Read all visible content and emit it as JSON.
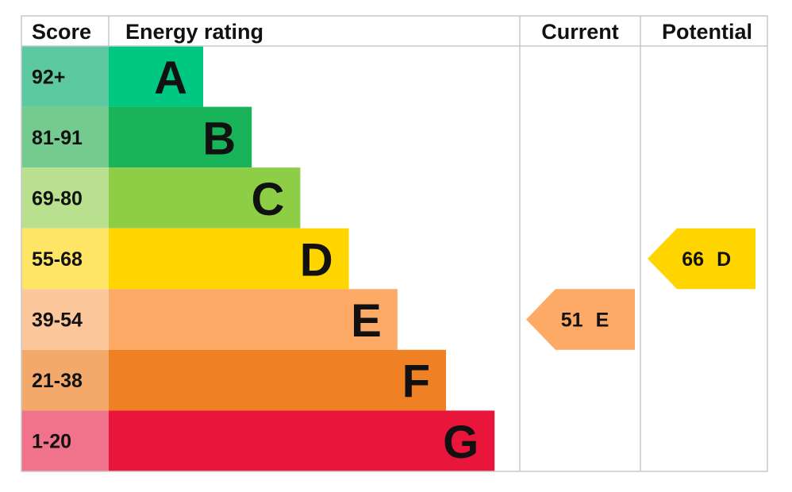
{
  "headers": [
    "Score",
    "Energy rating",
    "Current",
    "Potential"
  ],
  "bands": [
    {
      "score": "92+",
      "rating": "A",
      "color": "#00c781",
      "score_color": "#5dc9a1"
    },
    {
      "score": "81-91",
      "rating": "B",
      "color": "#19b459",
      "score_color": "#75cb8f"
    },
    {
      "score": "69-80",
      "rating": "C",
      "color": "#8dce46",
      "score_color": "#b8e08e"
    },
    {
      "score": "55-68",
      "rating": "D",
      "color": "#ffd500",
      "score_color": "#ffe566"
    },
    {
      "score": "39-54",
      "rating": "E",
      "color": "#fcaa65",
      "score_color": "#fdc79c"
    },
    {
      "score": "21-38",
      "rating": "F",
      "color": "#ef8023",
      "score_color": "#f3a96b"
    },
    {
      "score": "1-20",
      "rating": "G",
      "color": "#e9153b",
      "score_color": "#f0728b"
    }
  ],
  "current": {
    "value": 51,
    "rating": "E"
  },
  "potential": {
    "value": 66,
    "rating": "D"
  }
}
